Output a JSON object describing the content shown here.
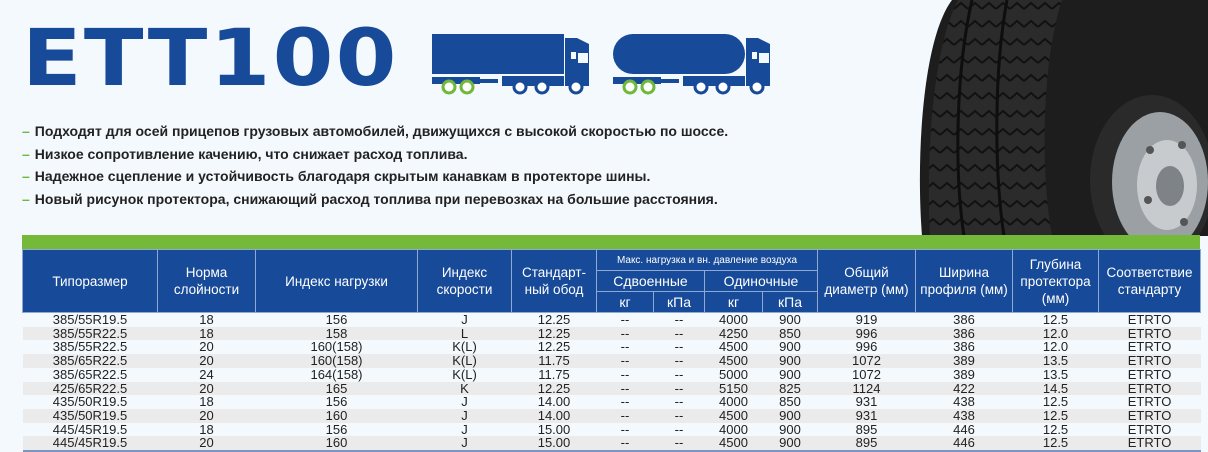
{
  "title": "ETT100",
  "colors": {
    "brand_blue": "#174a98",
    "accent_green": "#74b93a"
  },
  "icons": [
    "truck-with-box-trailer-icon",
    "truck-with-tank-trailer-icon",
    "tire-photo"
  ],
  "bullets": [
    "Подходят для осей прицепов грузовых автомобилей, движущихся с высокой скоростью по шоссе.",
    "Низкое сопротивление качению, что снижает расход топлива.",
    "Надежное сцепление и устойчивость благодаря скрытым канавкам в протекторе шины.",
    "Новый рисунок протектора, снижающий расход топлива при перевозках на большие расстояния."
  ],
  "bullet_marker": "–",
  "table": {
    "headers": {
      "size": "Типоразмер",
      "ply": "Норма слойности",
      "load_index": "Индекс нагрузки",
      "speed_index": "Индекс скорости",
      "rim": "Стандарт-ный обод",
      "max_load_group": "Макс. нагрузка и вн. давление воздуха",
      "dual": "Сдвоенные",
      "single": "Одиночные",
      "kg": "кг",
      "kpa": "кПа",
      "diameter": "Общий диаметр (мм)",
      "width": "Ширина профиля (мм)",
      "depth": "Глубина протектора (мм)",
      "standard": "Соответствие стандарту"
    },
    "rows": [
      [
        "385/55R19.5",
        "18",
        "156",
        "J",
        "12.25",
        "--",
        "--",
        "4000",
        "900",
        "919",
        "386",
        "12.5",
        "ETRTO"
      ],
      [
        "385/55R22.5",
        "18",
        "158",
        "L",
        "12.25",
        "--",
        "--",
        "4250",
        "850",
        "996",
        "386",
        "12.0",
        "ETRTO"
      ],
      [
        "385/55R22.5",
        "20",
        "160(158)",
        "K(L)",
        "12.25",
        "--",
        "--",
        "4500",
        "900",
        "996",
        "386",
        "12.0",
        "ETRTO"
      ],
      [
        "385/65R22.5",
        "20",
        "160(158)",
        "K(L)",
        "11.75",
        "--",
        "--",
        "4500",
        "900",
        "1072",
        "389",
        "13.5",
        "ETRTO"
      ],
      [
        "385/65R22.5",
        "24",
        "164(158)",
        "K(L)",
        "11.75",
        "--",
        "--",
        "5000",
        "900",
        "1072",
        "389",
        "13.5",
        "ETRTO"
      ],
      [
        "425/65R22.5",
        "20",
        "165",
        "K",
        "12.25",
        "--",
        "--",
        "5150",
        "825",
        "1124",
        "422",
        "14.5",
        "ETRTO"
      ],
      [
        "435/50R19.5",
        "18",
        "156",
        "J",
        "14.00",
        "--",
        "--",
        "4000",
        "850",
        "931",
        "438",
        "12.5",
        "ETRTO"
      ],
      [
        "435/50R19.5",
        "20",
        "160",
        "J",
        "14.00",
        "--",
        "--",
        "4500",
        "900",
        "931",
        "438",
        "12.5",
        "ETRTO"
      ],
      [
        "445/45R19.5",
        "18",
        "156",
        "J",
        "15.00",
        "--",
        "--",
        "4000",
        "900",
        "895",
        "446",
        "12.5",
        "ETRTO"
      ],
      [
        "445/45R19.5",
        "20",
        "160",
        "J",
        "15.00",
        "--",
        "--",
        "4500",
        "900",
        "895",
        "446",
        "12.5",
        "ETRTO"
      ]
    ]
  }
}
